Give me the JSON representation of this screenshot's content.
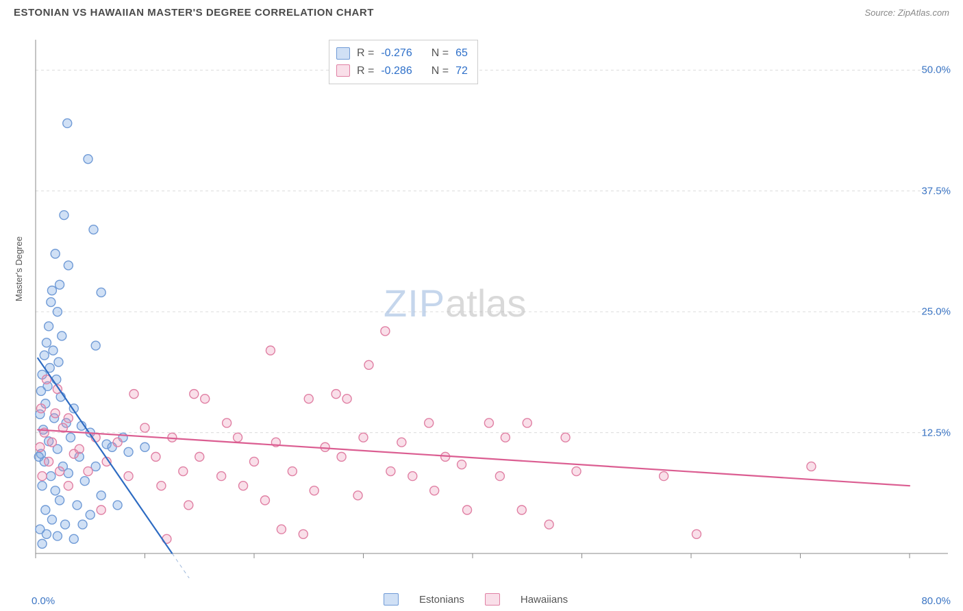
{
  "title": "ESTONIAN VS HAWAIIAN MASTER'S DEGREE CORRELATION CHART",
  "source_label": "Source: ZipAtlas.com",
  "ylabel": "Master's Degree",
  "watermark_zip": "ZIP",
  "watermark_atlas": "atlas",
  "chart": {
    "type": "scatter",
    "xlim": [
      0,
      80
    ],
    "ylim": [
      0,
      53
    ],
    "xtick_positions": [
      0,
      10,
      20,
      30,
      40,
      50,
      60,
      70,
      80
    ],
    "ytick_labels_right": [
      "12.5%",
      "25.0%",
      "37.5%",
      "50.0%"
    ],
    "ytick_positions": [
      12.5,
      25.0,
      37.5,
      50.0
    ],
    "xtick_label_left": "0.0%",
    "xtick_label_right": "80.0%",
    "background_color": "#ffffff",
    "grid_color": "#dcdcdc",
    "axis_color": "#888888",
    "tick_label_color": "#3b75c4",
    "marker_radius": 6.5,
    "marker_stroke_width": 1.4,
    "trend_line_width": 2.2,
    "trend_dash_width": 1,
    "series": [
      {
        "id": "estonians",
        "label": "Estonians",
        "fill": "rgba(120,165,225,0.35)",
        "stroke": "#6f9ad6",
        "trend_color": "#2d6bc2",
        "trend_p1": [
          0.2,
          20.2
        ],
        "trend_p2": [
          12.5,
          0
        ],
        "points": [
          [
            2.9,
            44.5
          ],
          [
            4.8,
            40.8
          ],
          [
            2.6,
            35.0
          ],
          [
            5.3,
            33.5
          ],
          [
            1.8,
            31.0
          ],
          [
            3.0,
            29.8
          ],
          [
            2.2,
            27.8
          ],
          [
            1.5,
            27.2
          ],
          [
            6.0,
            27.0
          ],
          [
            1.4,
            26.0
          ],
          [
            2.0,
            25.0
          ],
          [
            1.2,
            23.5
          ],
          [
            2.4,
            22.5
          ],
          [
            1.0,
            21.8
          ],
          [
            5.5,
            21.5
          ],
          [
            1.6,
            21.0
          ],
          [
            0.8,
            20.5
          ],
          [
            2.1,
            19.8
          ],
          [
            1.3,
            19.2
          ],
          [
            0.6,
            18.5
          ],
          [
            1.9,
            18.0
          ],
          [
            1.1,
            17.3
          ],
          [
            0.5,
            16.8
          ],
          [
            2.3,
            16.2
          ],
          [
            0.9,
            15.5
          ],
          [
            3.5,
            15.0
          ],
          [
            0.4,
            14.4
          ],
          [
            1.7,
            14.0
          ],
          [
            2.8,
            13.5
          ],
          [
            4.2,
            13.2
          ],
          [
            0.7,
            12.8
          ],
          [
            5.0,
            12.5
          ],
          [
            3.2,
            12.0
          ],
          [
            1.2,
            11.6
          ],
          [
            6.5,
            11.3
          ],
          [
            2.0,
            10.8
          ],
          [
            0.5,
            10.3
          ],
          [
            4.0,
            10.0
          ],
          [
            7.0,
            11.0
          ],
          [
            8.5,
            10.5
          ],
          [
            8.0,
            12.0
          ],
          [
            10.0,
            11.0
          ],
          [
            0.8,
            9.5
          ],
          [
            2.5,
            9.0
          ],
          [
            5.5,
            9.0
          ],
          [
            3.0,
            8.3
          ],
          [
            1.4,
            8.0
          ],
          [
            4.5,
            7.5
          ],
          [
            0.6,
            7.0
          ],
          [
            0.3,
            10.0
          ],
          [
            1.8,
            6.5
          ],
          [
            6.0,
            6.0
          ],
          [
            2.2,
            5.5
          ],
          [
            3.8,
            5.0
          ],
          [
            0.9,
            4.5
          ],
          [
            5.0,
            4.0
          ],
          [
            7.5,
            5.0
          ],
          [
            1.5,
            3.5
          ],
          [
            2.7,
            3.0
          ],
          [
            4.3,
            3.0
          ],
          [
            0.4,
            2.5
          ],
          [
            1.0,
            2.0
          ],
          [
            2.0,
            1.8
          ],
          [
            3.5,
            1.5
          ],
          [
            0.6,
            1.0
          ]
        ]
      },
      {
        "id": "hawaiians",
        "label": "Hawaiians",
        "fill": "rgba(235,140,175,0.28)",
        "stroke": "#e07fa3",
        "trend_color": "#db5d91",
        "trend_p1": [
          0.2,
          12.8
        ],
        "trend_p2": [
          80,
          7.0
        ],
        "points": [
          [
            32.0,
            23.0
          ],
          [
            21.5,
            21.0
          ],
          [
            30.5,
            19.5
          ],
          [
            1.0,
            18.0
          ],
          [
            2.0,
            17.0
          ],
          [
            9.0,
            16.5
          ],
          [
            14.5,
            16.5
          ],
          [
            27.5,
            16.5
          ],
          [
            15.5,
            16.0
          ],
          [
            25.0,
            16.0
          ],
          [
            28.5,
            16.0
          ],
          [
            0.5,
            15.0
          ],
          [
            1.8,
            14.5
          ],
          [
            3.0,
            14.0
          ],
          [
            17.5,
            13.5
          ],
          [
            36.0,
            13.5
          ],
          [
            41.5,
            13.5
          ],
          [
            45.0,
            13.5
          ],
          [
            2.5,
            13.0
          ],
          [
            10.0,
            13.0
          ],
          [
            0.8,
            12.5
          ],
          [
            5.5,
            12.0
          ],
          [
            12.5,
            12.0
          ],
          [
            18.5,
            12.0
          ],
          [
            30.0,
            12.0
          ],
          [
            43.0,
            12.0
          ],
          [
            48.5,
            12.0
          ],
          [
            1.5,
            11.5
          ],
          [
            7.5,
            11.5
          ],
          [
            22.0,
            11.5
          ],
          [
            33.5,
            11.5
          ],
          [
            0.4,
            11.0
          ],
          [
            4.0,
            10.8
          ],
          [
            26.5,
            11.0
          ],
          [
            3.5,
            10.3
          ],
          [
            11.0,
            10.0
          ],
          [
            15.0,
            10.0
          ],
          [
            28.0,
            10.0
          ],
          [
            37.5,
            10.0
          ],
          [
            1.2,
            9.5
          ],
          [
            6.5,
            9.5
          ],
          [
            20.0,
            9.5
          ],
          [
            39.0,
            9.2
          ],
          [
            71.0,
            9.0
          ],
          [
            2.2,
            8.5
          ],
          [
            4.8,
            8.5
          ],
          [
            13.5,
            8.5
          ],
          [
            23.5,
            8.5
          ],
          [
            32.5,
            8.5
          ],
          [
            49.5,
            8.5
          ],
          [
            0.6,
            8.0
          ],
          [
            8.5,
            8.0
          ],
          [
            17.0,
            8.0
          ],
          [
            34.5,
            8.0
          ],
          [
            42.5,
            8.0
          ],
          [
            57.5,
            8.0
          ],
          [
            3.0,
            7.0
          ],
          [
            11.5,
            7.0
          ],
          [
            19.0,
            7.0
          ],
          [
            25.5,
            6.5
          ],
          [
            29.5,
            6.0
          ],
          [
            36.5,
            6.5
          ],
          [
            21.0,
            5.5
          ],
          [
            14.0,
            5.0
          ],
          [
            6.0,
            4.5
          ],
          [
            39.5,
            4.5
          ],
          [
            44.5,
            4.5
          ],
          [
            47.0,
            3.0
          ],
          [
            22.5,
            2.5
          ],
          [
            24.5,
            2.0
          ],
          [
            12.0,
            1.5
          ],
          [
            60.5,
            2.0
          ]
        ]
      }
    ]
  },
  "stats": {
    "r_label": "R =",
    "n_label": "N =",
    "rows": [
      {
        "series": "estonians",
        "r": "-0.276",
        "n": "65"
      },
      {
        "series": "hawaiians",
        "r": "-0.286",
        "n": "72"
      }
    ]
  },
  "legend": {
    "items": [
      {
        "series": "estonians",
        "label": "Estonians"
      },
      {
        "series": "hawaiians",
        "label": "Hawaiians"
      }
    ]
  }
}
